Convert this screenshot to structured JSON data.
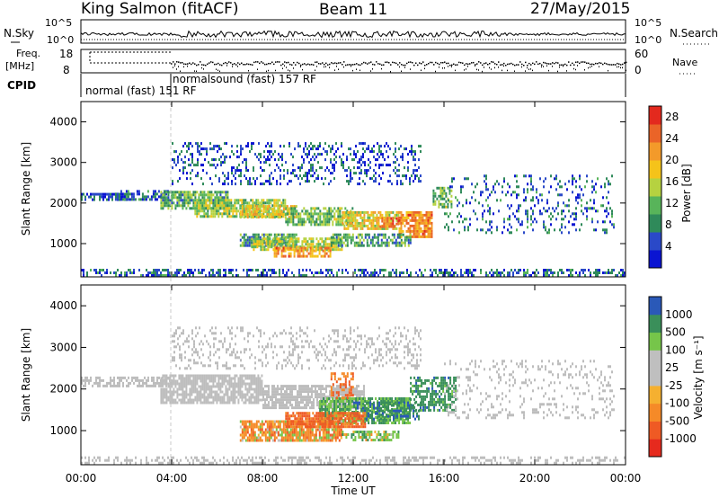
{
  "header": {
    "title": "King Salmon (fitACF)",
    "beam": "Beam 11",
    "date": "27/May/2015"
  },
  "strips": {
    "nsky_label": "N.Sky",
    "nsky_ticks": [
      "10^5",
      "10^0"
    ],
    "nsearch_label": "N.Search",
    "nsearch_ticks": [
      "10^5",
      "10^0"
    ],
    "freq_label_1": "Freq.",
    "freq_label_2": "[MHz]",
    "freq_ticks": [
      "18",
      "8"
    ],
    "nave_label": "Nave",
    "nave_ticks": [
      "60",
      "0"
    ],
    "cpid_label": "CPID",
    "cpid_1": "normal (fast)  151 RF",
    "cpid_2": "normalsound (fast)  157 RF"
  },
  "colors": {
    "power_scale": [
      "#0a14d2",
      "#2a49c8",
      "#2f8a5a",
      "#58b45a",
      "#b6d240",
      "#f5c31a",
      "#f39a2a",
      "#ea6428",
      "#e3291e"
    ],
    "velocity_scale": [
      "#e62a1e",
      "#ef5a24",
      "#f58a28",
      "#f5b030",
      "#bfbfbf",
      "#bfbfbf",
      "#76c54a",
      "#3a8f5a",
      "#2a59b8"
    ],
    "ground_scatter": "#bdbdbd"
  },
  "chart_data": [
    {
      "type": "heatmap",
      "name": "power",
      "xlabel": "",
      "ylabel": "Slant Range [km]",
      "xlim": [
        "00:00",
        "24:00"
      ],
      "ylim": [
        180,
        4500
      ],
      "y_ticks": [
        "1000",
        "2000",
        "3000",
        "4000"
      ],
      "colorbar": {
        "label": "Power [dB]",
        "ticks": [
          "4",
          "8",
          "12",
          "16",
          "20",
          "24",
          "28"
        ],
        "range": [
          0,
          30
        ]
      },
      "regions": [
        {
          "t0": 0.0,
          "t1": 2.0,
          "r0": 2060,
          "r1": 2250,
          "power": 5,
          "density": 0.7
        },
        {
          "t0": 1.5,
          "t1": 4.0,
          "r0": 2080,
          "r1": 2320,
          "power": 6,
          "density": 0.6
        },
        {
          "t0": 3.5,
          "t1": 6.5,
          "r0": 1900,
          "r1": 2300,
          "power": 11,
          "density": 0.8
        },
        {
          "t0": 5.0,
          "t1": 9.0,
          "r0": 1700,
          "r1": 2100,
          "power": 14,
          "density": 0.8
        },
        {
          "t0": 7.0,
          "t1": 9.5,
          "r0": 1650,
          "r1": 1950,
          "power": 18,
          "density": 0.7
        },
        {
          "t0": 9.0,
          "t1": 12.0,
          "r0": 1500,
          "r1": 1900,
          "power": 12,
          "density": 0.7
        },
        {
          "t0": 11.5,
          "t1": 14.0,
          "r0": 1350,
          "r1": 1800,
          "power": 17,
          "density": 0.8
        },
        {
          "t0": 13.0,
          "t1": 14.0,
          "r0": 1400,
          "r1": 1650,
          "power": 24,
          "density": 0.6
        },
        {
          "t0": 14.0,
          "t1": 15.5,
          "r0": 1200,
          "r1": 1800,
          "power": 22,
          "density": 0.8
        },
        {
          "t0": 15.5,
          "t1": 16.3,
          "r0": 1900,
          "r1": 2400,
          "power": 12,
          "density": 0.6
        },
        {
          "t0": 7.0,
          "t1": 9.5,
          "r0": 980,
          "r1": 1250,
          "power": 10,
          "density": 0.8
        },
        {
          "t0": 7.5,
          "t1": 11.5,
          "r0": 850,
          "r1": 1150,
          "power": 15,
          "density": 0.8
        },
        {
          "t0": 8.5,
          "t1": 11.0,
          "r0": 700,
          "r1": 920,
          "power": 22,
          "density": 0.7
        },
        {
          "t0": 11.0,
          "t1": 14.5,
          "r0": 950,
          "r1": 1250,
          "power": 10,
          "density": 0.6
        },
        {
          "t0": 4.0,
          "t1": 15.0,
          "r0": 2500,
          "r1": 3500,
          "power": 5,
          "density": 0.25
        },
        {
          "t0": 16.0,
          "t1": 23.5,
          "r0": 1300,
          "r1": 2700,
          "power": 6,
          "density": 0.18
        },
        {
          "t0": 0.0,
          "t1": 24.0,
          "r0": 200,
          "r1": 380,
          "power": 6,
          "density": 0.45
        }
      ]
    },
    {
      "type": "heatmap",
      "name": "velocity",
      "xlabel": "Time UT",
      "ylabel": "Slant Range [km]",
      "xlim": [
        "00:00",
        "24:00"
      ],
      "x_ticks": [
        "00:00",
        "04:00",
        "08:00",
        "12:00",
        "16:00",
        "20:00",
        "00:00"
      ],
      "ylim": [
        180,
        4500
      ],
      "y_ticks": [
        "1000",
        "2000",
        "3000",
        "4000"
      ],
      "colorbar": {
        "label": "Velocity [m s⁻¹]",
        "ticks": [
          "1000",
          "500",
          "100",
          "25",
          "-25",
          "-100",
          "-500",
          "-1000"
        ]
      },
      "regions": [
        {
          "t0": 0.0,
          "t1": 4.0,
          "r0": 2060,
          "r1": 2300,
          "velocity": 0,
          "density": 0.6
        },
        {
          "t0": 3.5,
          "t1": 8.0,
          "r0": 1700,
          "r1": 2350,
          "velocity": 0,
          "density": 0.8
        },
        {
          "t0": 8.0,
          "t1": 12.5,
          "r0": 1550,
          "r1": 2100,
          "velocity": 0,
          "density": 0.8
        },
        {
          "t0": 10.5,
          "t1": 14.5,
          "r0": 1200,
          "r1": 1800,
          "velocity": 300,
          "density": 0.8
        },
        {
          "t0": 12.0,
          "t1": 15.0,
          "r0": 1250,
          "r1": 1700,
          "velocity": 700,
          "density": 0.5
        },
        {
          "t0": 14.5,
          "t1": 16.5,
          "r0": 1500,
          "r1": 2300,
          "velocity": 500,
          "density": 0.6
        },
        {
          "t0": 7.0,
          "t1": 11.5,
          "r0": 750,
          "r1": 1250,
          "velocity": -150,
          "density": 0.8
        },
        {
          "t0": 9.0,
          "t1": 12.5,
          "r0": 1100,
          "r1": 1450,
          "velocity": -400,
          "density": 0.8
        },
        {
          "t0": 11.5,
          "t1": 14.0,
          "r0": 800,
          "r1": 1000,
          "velocity": 150,
          "density": 0.6
        },
        {
          "t0": 11.0,
          "t1": 12.0,
          "r0": 1800,
          "r1": 2400,
          "velocity": -350,
          "density": 0.4
        },
        {
          "t0": 4.0,
          "t1": 15.0,
          "r0": 2500,
          "r1": 3500,
          "velocity": 0,
          "density": 0.22
        },
        {
          "t0": 16.0,
          "t1": 23.5,
          "r0": 1300,
          "r1": 2700,
          "velocity": 0,
          "density": 0.16
        },
        {
          "t0": 0.0,
          "t1": 24.0,
          "r0": 200,
          "r1": 380,
          "velocity": 0,
          "density": 0.4
        }
      ]
    }
  ]
}
